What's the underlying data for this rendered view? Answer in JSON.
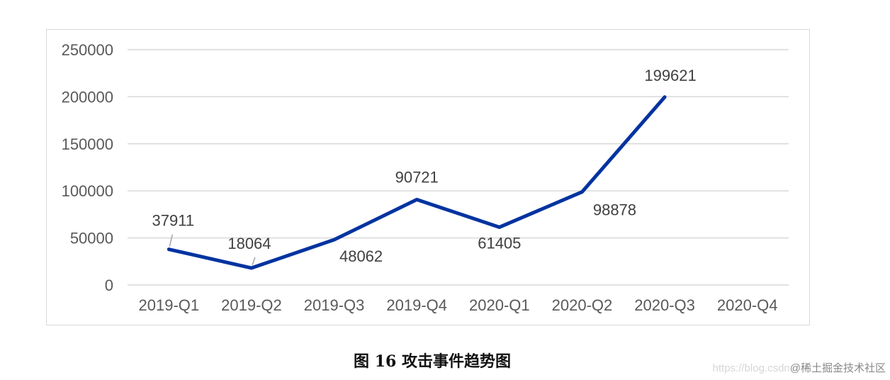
{
  "chart_data": {
    "type": "line",
    "categories": [
      "2019-Q1",
      "2019-Q2",
      "2019-Q3",
      "2019-Q4",
      "2020-Q1",
      "2020-Q2",
      "2020-Q3",
      "2020-Q4"
    ],
    "series": [
      {
        "values": [
          37911,
          18064,
          48062,
          90721,
          61405,
          98878,
          199621,
          null
        ],
        "data_labels": [
          "37911",
          "18064",
          "48062",
          "90721",
          "61405",
          "98878",
          "199621",
          ""
        ],
        "color": "#0033a0"
      }
    ],
    "y_ticks": [
      "0",
      "50000",
      "100000",
      "150000",
      "200000",
      "250000"
    ],
    "ylim": [
      0,
      250000
    ],
    "grid": true,
    "legend": "none"
  },
  "caption": "图 16  攻击事件趋势图",
  "watermark": {
    "site": "https://blog.csdn",
    "brand": "@稀土掘金技术社区"
  }
}
